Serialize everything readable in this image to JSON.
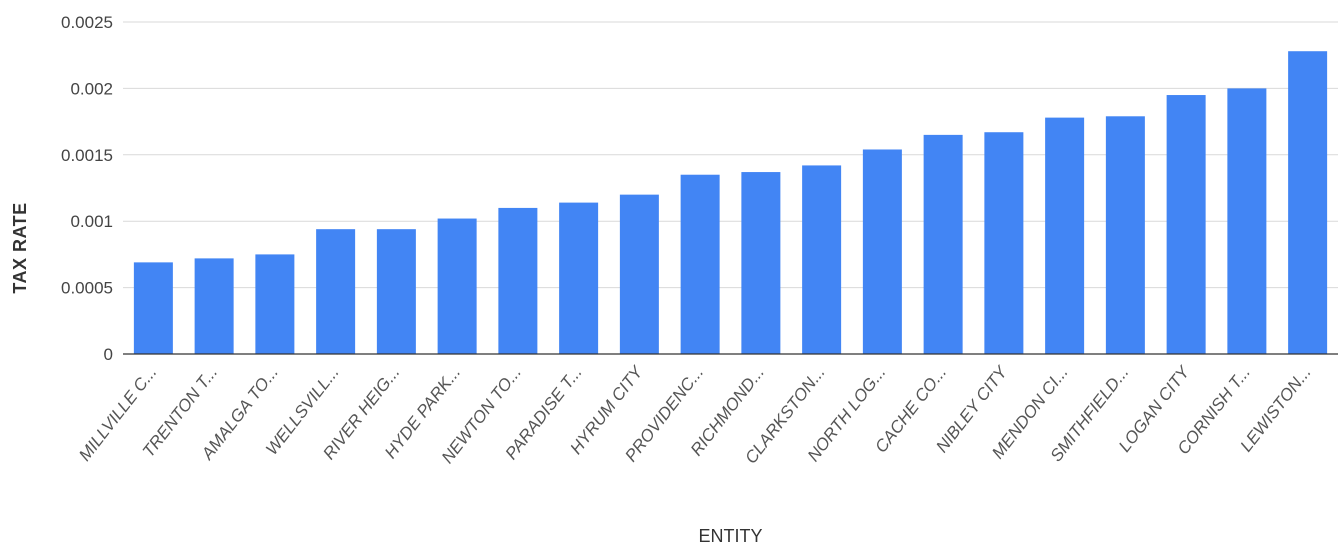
{
  "chart_data": {
    "type": "bar",
    "xlabel": "ENTITY",
    "ylabel": "TAX RATE",
    "ylim": [
      0,
      0.0025
    ],
    "yticks": [
      "0",
      "0.0005",
      "0.001",
      "0.0015",
      "0.002",
      "0.0025"
    ],
    "grid": true,
    "legend": "none",
    "bar_color": "#4285f4",
    "categories": [
      "MILLVILLE C...",
      "TRENTON T...",
      "AMALGA TO...",
      "WELLSVILL...",
      "RIVER HEIG...",
      "HYDE PARK...",
      "NEWTON TO...",
      "PARADISE T...",
      "HYRUM CITY",
      "PROVIDENC...",
      "RICHMOND...",
      "CLARKSTON...",
      "NORTH LOG...",
      "CACHE CO...",
      "NIBLEY CITY",
      "MENDON CI...",
      "SMITHFIELD...",
      "LOGAN CITY",
      "CORNISH T...",
      "LEWISTON..."
    ],
    "values": [
      0.00069,
      0.00072,
      0.00075,
      0.00094,
      0.00094,
      0.00102,
      0.0011,
      0.00114,
      0.0012,
      0.00135,
      0.00137,
      0.00142,
      0.00154,
      0.00165,
      0.00167,
      0.00178,
      0.00179,
      0.00195,
      0.002,
      0.00228
    ]
  }
}
